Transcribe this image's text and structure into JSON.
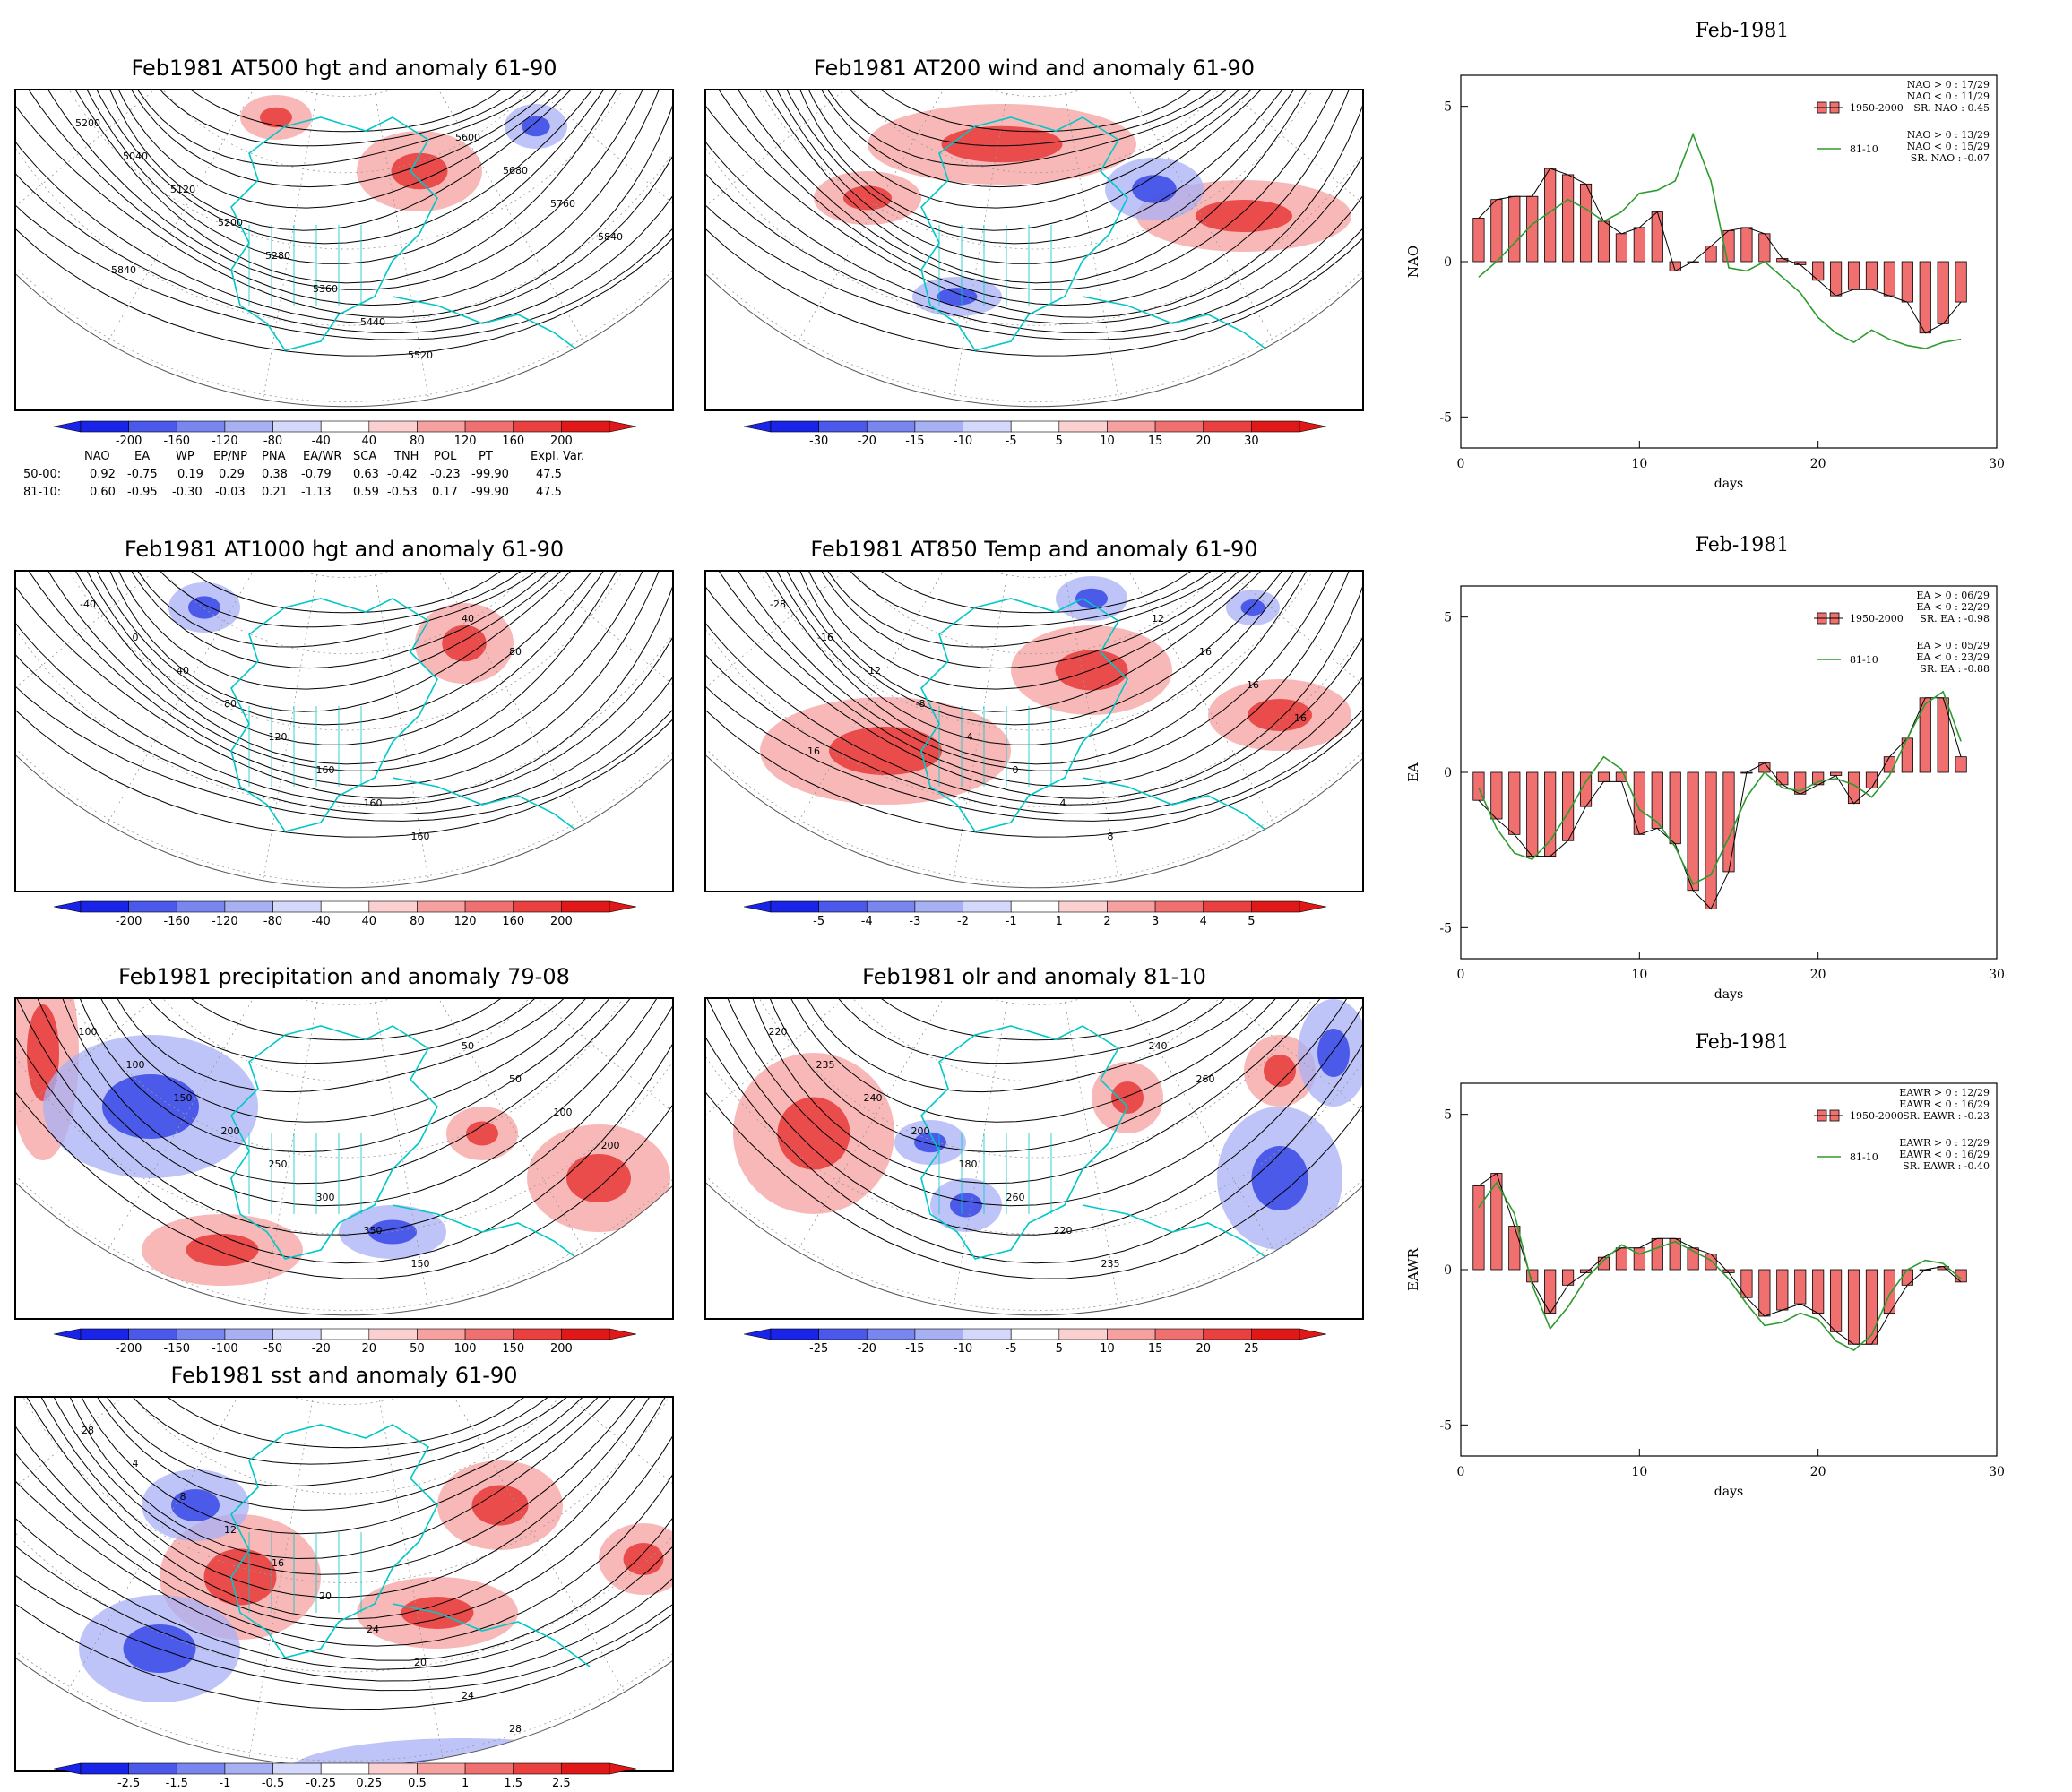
{
  "maps": [
    {
      "id": "m500",
      "title": "Feb1981 AT500 hgt and anomaly 61-90",
      "contours": [
        "5200",
        "5040",
        "5120",
        "5200",
        "5280",
        "5360",
        "5440",
        "5520",
        "5600",
        "5680",
        "5760",
        "5840",
        "5840"
      ],
      "colorbar": {
        "labels": [
          "-200",
          "-160",
          "-120",
          "-80",
          "-40",
          "40",
          "80",
          "120",
          "160",
          "200"
        ]
      }
    },
    {
      "id": "m200",
      "title": "Feb1981 AT200 wind and anomaly 61-90",
      "contours": [],
      "colorbar": {
        "labels": [
          "-30",
          "-20",
          "-15",
          "-10",
          "-5",
          "5",
          "10",
          "15",
          "20",
          "30"
        ]
      }
    },
    {
      "id": "m1000",
      "title": "Feb1981 AT1000 hgt and anomaly 61-90",
      "contours": [
        "-40",
        "0",
        "40",
        "80",
        "120",
        "160",
        "160",
        "160",
        "40",
        "80"
      ],
      "colorbar": {
        "labels": [
          "-200",
          "-160",
          "-120",
          "-80",
          "-40",
          "40",
          "80",
          "120",
          "160",
          "200"
        ]
      }
    },
    {
      "id": "m850",
      "title": "Feb1981 AT850 Temp and anomaly 61-90",
      "contours": [
        "-28",
        "-16",
        "-12",
        "-8",
        "-4",
        "0",
        "4",
        "8",
        "12",
        "16",
        "16",
        "16",
        "16"
      ],
      "colorbar": {
        "labels": [
          "-5",
          "-4",
          "-3",
          "-2",
          "-1",
          "1",
          "2",
          "3",
          "4",
          "5"
        ]
      }
    },
    {
      "id": "mprec",
      "title": "Feb1981 precipitation and anomaly 79-08",
      "contours": [
        "100",
        "100",
        "150",
        "200",
        "250",
        "300",
        "350",
        "150",
        "50",
        "50",
        "100",
        "200"
      ],
      "colorbar": {
        "labels": [
          "-200",
          "-150",
          "-100",
          "-50",
          "-20",
          "20",
          "50",
          "100",
          "150",
          "200"
        ]
      }
    },
    {
      "id": "molr",
      "title": "Feb1981 olr and anomaly 81-10",
      "contours": [
        "220",
        "235",
        "240",
        "200",
        "180",
        "260",
        "220",
        "235",
        "240",
        "260"
      ],
      "colorbar": {
        "labels": [
          "-25",
          "-20",
          "-15",
          "-10",
          "-5",
          "5",
          "10",
          "15",
          "20",
          "25"
        ]
      }
    },
    {
      "id": "msst",
      "title": "Feb1981 sst and anomaly 61-90",
      "contours": [
        "28",
        "4",
        "8",
        "12",
        "16",
        "20",
        "24",
        "20",
        "24",
        "28"
      ],
      "colorbar": {
        "labels": [
          "-2.5",
          "-1.5",
          "-1",
          "-0.5",
          "-0.25",
          "0.25",
          "0.5",
          "1",
          "1.5",
          "2.5"
        ]
      }
    }
  ],
  "teleconnections": {
    "headers": [
      "NAO",
      "EA",
      "WP",
      "EP/NP",
      "PNA",
      "EA/WR",
      "SCA",
      "TNH",
      "POL",
      "PT",
      "Expl. Var."
    ],
    "rows": [
      {
        "label": "50-00:",
        "values": [
          "0.92",
          "-0.75",
          "0.19",
          "0.29",
          "0.38",
          "-0.79",
          "0.63",
          "-0.42",
          "-0.23",
          "-99.90",
          "47.5"
        ]
      },
      {
        "label": "81-10:",
        "values": [
          "0.60",
          "-0.95",
          "-0.30",
          "-0.03",
          "0.21",
          "-1.13",
          "0.59",
          "-0.53",
          "0.17",
          "-99.90",
          "47.5"
        ]
      }
    ]
  },
  "colors": {
    "bar_fill": "#f07070",
    "line": "#2e9b2e",
    "coast": "#00c8c8",
    "neg_strong": "#2030e0",
    "pos_strong": "#e82020"
  },
  "chart_data": [
    {
      "type": "bar",
      "title": "Feb-1981",
      "ylabel": "NAO",
      "xlabel": "days",
      "xlim": [
        0,
        30
      ],
      "ylim": [
        -6,
        6
      ],
      "xticks": [
        0,
        10,
        20,
        30
      ],
      "yticks": [
        -5,
        0,
        5
      ],
      "legend": {
        "bar": "1950-2000",
        "line": "81-10",
        "bar_stats": [
          "NAO > 0 : 17/29",
          "NAO < 0 : 11/29",
          "SR. NAO : 0.45"
        ],
        "line_stats": [
          "NAO > 0 : 13/29",
          "NAO < 0 : 15/29",
          "SR. NAO : -0.07"
        ]
      },
      "x": [
        1,
        2,
        3,
        4,
        5,
        6,
        7,
        8,
        9,
        10,
        11,
        12,
        13,
        14,
        15,
        16,
        17,
        18,
        19,
        20,
        21,
        22,
        23,
        24,
        25,
        26,
        27,
        28
      ],
      "bars": [
        1.4,
        2.0,
        2.1,
        2.1,
        3.0,
        2.8,
        2.5,
        1.3,
        0.9,
        1.1,
        1.6,
        -0.3,
        0.0,
        0.5,
        1.0,
        1.1,
        0.9,
        0.1,
        -0.1,
        -0.6,
        -1.1,
        -0.9,
        -0.9,
        -1.1,
        -1.3,
        -2.3,
        -2.0,
        -1.3
      ],
      "line": [
        -0.5,
        0.0,
        0.6,
        1.2,
        1.6,
        2.0,
        1.7,
        1.3,
        1.6,
        2.2,
        2.3,
        2.6,
        4.1,
        2.6,
        -0.2,
        -0.3,
        0.0,
        -0.5,
        -1.0,
        -1.8,
        -2.3,
        -2.6,
        -2.2,
        -2.5,
        -2.7,
        -2.8,
        -2.6,
        -2.5
      ]
    },
    {
      "type": "bar",
      "title": "Feb-1981",
      "ylabel": "EA",
      "xlabel": "days",
      "xlim": [
        0,
        30
      ],
      "ylim": [
        -6,
        6
      ],
      "xticks": [
        0,
        10,
        20,
        30
      ],
      "yticks": [
        -5,
        0,
        5
      ],
      "legend": {
        "bar": "1950-2000",
        "line": "81-10",
        "bar_stats": [
          "EA > 0 : 06/29",
          "EA < 0 : 22/29",
          "SR. EA : -0.98"
        ],
        "line_stats": [
          "EA > 0 : 05/29",
          "EA < 0 : 23/29",
          "SR. EA : -0.88"
        ]
      },
      "x": [
        1,
        2,
        3,
        4,
        5,
        6,
        7,
        8,
        9,
        10,
        11,
        12,
        13,
        14,
        15,
        16,
        17,
        18,
        19,
        20,
        21,
        22,
        23,
        24,
        25,
        26,
        27,
        28
      ],
      "bars": [
        -0.9,
        -1.5,
        -2.0,
        -2.7,
        -2.7,
        -2.2,
        -1.1,
        -0.3,
        -0.3,
        -2.0,
        -1.8,
        -2.3,
        -3.8,
        -4.4,
        -3.2,
        0.0,
        0.3,
        -0.4,
        -0.7,
        -0.4,
        -0.1,
        -1.0,
        -0.5,
        0.5,
        1.1,
        2.4,
        2.4,
        0.5
      ],
      "line": [
        -0.5,
        -1.8,
        -2.6,
        -2.8,
        -2.2,
        -1.3,
        -0.3,
        0.5,
        0.1,
        -1.2,
        -1.6,
        -2.4,
        -3.6,
        -3.3,
        -2.1,
        -0.8,
        0.0,
        -0.5,
        -0.6,
        -0.3,
        -0.2,
        -0.4,
        -0.8,
        -0.1,
        1.1,
        2.2,
        2.6,
        1.0
      ]
    },
    {
      "type": "bar",
      "title": "Feb-1981",
      "ylabel": "EAWR",
      "xlabel": "days",
      "xlim": [
        0,
        30
      ],
      "ylim": [
        -6,
        6
      ],
      "xticks": [
        0,
        10,
        20,
        30
      ],
      "yticks": [
        -5,
        0,
        5
      ],
      "legend": {
        "bar": "1950-2000",
        "line": "81-10",
        "bar_stats": [
          "EAWR > 0 : 12/29",
          "EAWR < 0 : 16/29",
          "SR. EAWR : -0.23"
        ],
        "line_stats": [
          "EAWR > 0 : 12/29",
          "EAWR < 0 : 16/29",
          "SR. EAWR : -0.40"
        ]
      },
      "x": [
        1,
        2,
        3,
        4,
        5,
        6,
        7,
        8,
        9,
        10,
        11,
        12,
        13,
        14,
        15,
        16,
        17,
        18,
        19,
        20,
        21,
        22,
        23,
        24,
        25,
        26,
        27,
        28
      ],
      "bars": [
        2.7,
        3.1,
        1.4,
        -0.4,
        -1.4,
        -0.5,
        -0.1,
        0.4,
        0.7,
        0.7,
        1.0,
        1.0,
        0.7,
        0.5,
        -0.1,
        -0.9,
        -1.5,
        -1.3,
        -1.1,
        -1.4,
        -2.0,
        -2.4,
        -2.4,
        -1.4,
        -0.5,
        0.0,
        0.1,
        -0.4
      ],
      "line": [
        2.0,
        2.8,
        1.8,
        -0.5,
        -1.9,
        -1.2,
        -0.3,
        0.3,
        0.8,
        0.5,
        0.7,
        0.9,
        0.6,
        0.3,
        -0.3,
        -1.1,
        -1.8,
        -1.7,
        -1.4,
        -1.6,
        -2.3,
        -2.6,
        -2.1,
        -0.8,
        0.0,
        0.3,
        0.2,
        -0.3
      ]
    }
  ]
}
